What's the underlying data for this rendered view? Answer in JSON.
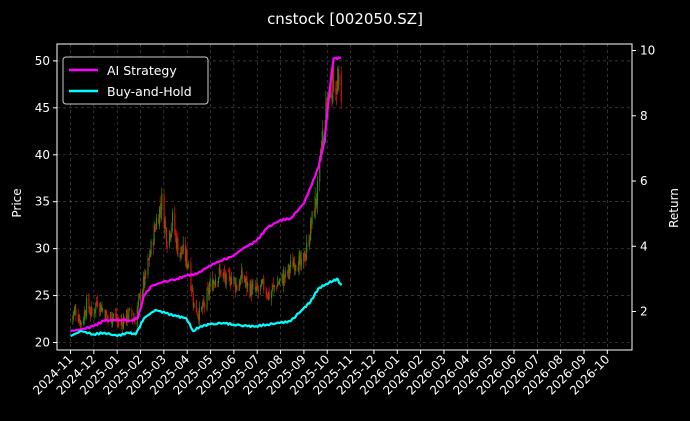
{
  "chart_data": {
    "type": "line",
    "title": "cnstock [002050.SZ]",
    "xlabel": "",
    "ylabel": "Price",
    "ylabel_right": "Return",
    "ylim": [
      19.2,
      51.8
    ],
    "ylim_right": [
      0.82,
      10.2
    ],
    "y_ticks": [
      20,
      25,
      30,
      35,
      40,
      45,
      50
    ],
    "y_ticks_right": [
      2,
      4,
      6,
      8
    ],
    "y_tick_labels_right": [
      "2",
      "4",
      "6",
      "8",
      "10"
    ],
    "y_ticks_right_all": [
      2,
      4,
      6,
      8,
      10
    ],
    "x_tick_labels": [
      "2024-11",
      "2024-12",
      "2025-01",
      "2025-02",
      "2025-03",
      "2025-04",
      "2025-05",
      "2025-06",
      "2025-07",
      "2025-08",
      "2025-09",
      "2025-10",
      "2025-11",
      "2025-12",
      "2026-01",
      "2026-02",
      "2026-03",
      "2026-04",
      "2026-05",
      "2026-06",
      "2026-07",
      "2026-08",
      "2026-09",
      "2026-10"
    ],
    "grid": true,
    "legend_position": "top-left",
    "candles": {
      "up_color": "#2e8b00",
      "down_color": "#e0140e",
      "price_path": [
        [
          "2024-11-01",
          22.5
        ],
        [
          "2024-11-08",
          23.5
        ],
        [
          "2024-11-15",
          22.0
        ],
        [
          "2024-11-22",
          24.0
        ],
        [
          "2024-11-29",
          23.0
        ],
        [
          "2024-12-06",
          24.5
        ],
        [
          "2024-12-13",
          23.5
        ],
        [
          "2024-12-20",
          22.5
        ],
        [
          "2024-12-27",
          23.0
        ],
        [
          "2025-01-03",
          22.0
        ],
        [
          "2025-01-10",
          22.5
        ],
        [
          "2025-01-17",
          23.0
        ],
        [
          "2025-01-24",
          22.5
        ],
        [
          "2025-01-31",
          25.0
        ],
        [
          "2025-02-07",
          27.0
        ],
        [
          "2025-02-14",
          30.0
        ],
        [
          "2025-02-21",
          33.0
        ],
        [
          "2025-02-28",
          35.0
        ],
        [
          "2025-03-07",
          31.0
        ],
        [
          "2025-03-14",
          33.0
        ],
        [
          "2025-03-21",
          30.0
        ],
        [
          "2025-03-28",
          29.5
        ],
        [
          "2025-04-04",
          28.5
        ],
        [
          "2025-04-11",
          24.0
        ],
        [
          "2025-04-18",
          23.0
        ],
        [
          "2025-04-25",
          24.0
        ],
        [
          "2025-05-02",
          26.0
        ],
        [
          "2025-05-09",
          27.0
        ],
        [
          "2025-05-16",
          27.5
        ],
        [
          "2025-05-23",
          26.5
        ],
        [
          "2025-05-30",
          27.0
        ],
        [
          "2025-06-06",
          26.0
        ],
        [
          "2025-06-13",
          27.0
        ],
        [
          "2025-06-20",
          26.0
        ],
        [
          "2025-06-27",
          25.5
        ],
        [
          "2025-07-04",
          25.5
        ],
        [
          "2025-07-11",
          26.0
        ],
        [
          "2025-07-18",
          25.0
        ],
        [
          "2025-07-25",
          26.0
        ],
        [
          "2025-08-01",
          26.5
        ],
        [
          "2025-08-08",
          27.0
        ],
        [
          "2025-08-15",
          28.0
        ],
        [
          "2025-08-22",
          29.0
        ],
        [
          "2025-08-29",
          28.0
        ],
        [
          "2025-09-05",
          30.0
        ],
        [
          "2025-09-12",
          33.0
        ],
        [
          "2025-09-19",
          36.0
        ],
        [
          "2025-09-26",
          42.0
        ],
        [
          "2025-10-03",
          46.0
        ],
        [
          "2025-10-10",
          48.0
        ],
        [
          "2025-10-17",
          47.0
        ],
        [
          "2025-10-20",
          45.0
        ]
      ]
    },
    "series": [
      {
        "name": "AI Strategy",
        "color": "#ff00ff",
        "axis": "right",
        "points": [
          [
            "2024-11-01",
            1.4
          ],
          [
            "2024-11-15",
            1.45
          ],
          [
            "2024-12-01",
            1.55
          ],
          [
            "2024-12-15",
            1.72
          ],
          [
            "2025-01-01",
            1.75
          ],
          [
            "2025-01-20",
            1.72
          ],
          [
            "2025-01-28",
            1.8
          ],
          [
            "2025-02-05",
            2.5
          ],
          [
            "2025-02-15",
            2.78
          ],
          [
            "2025-03-01",
            2.9
          ],
          [
            "2025-03-20",
            3.0
          ],
          [
            "2025-04-01",
            3.1
          ],
          [
            "2025-04-15",
            3.15
          ],
          [
            "2025-05-01",
            3.4
          ],
          [
            "2025-05-15",
            3.55
          ],
          [
            "2025-06-01",
            3.7
          ],
          [
            "2025-06-15",
            3.95
          ],
          [
            "2025-07-01",
            4.15
          ],
          [
            "2025-07-15",
            4.55
          ],
          [
            "2025-08-01",
            4.8
          ],
          [
            "2025-08-15",
            4.85
          ],
          [
            "2025-09-01",
            5.3
          ],
          [
            "2025-09-10",
            5.8
          ],
          [
            "2025-09-20",
            6.4
          ],
          [
            "2025-09-28",
            7.2
          ],
          [
            "2025-10-05",
            8.8
          ],
          [
            "2025-10-10",
            9.75
          ],
          [
            "2025-10-20",
            9.78
          ]
        ]
      },
      {
        "name": "Buy-and-Hold",
        "color": "#00ffff",
        "axis": "right",
        "points": [
          [
            "2024-11-01",
            1.25
          ],
          [
            "2024-11-15",
            1.4
          ],
          [
            "2024-12-01",
            1.3
          ],
          [
            "2024-12-15",
            1.35
          ],
          [
            "2025-01-01",
            1.25
          ],
          [
            "2025-01-15",
            1.35
          ],
          [
            "2025-01-25",
            1.3
          ],
          [
            "2025-02-05",
            1.8
          ],
          [
            "2025-02-20",
            2.05
          ],
          [
            "2025-03-05",
            1.95
          ],
          [
            "2025-03-20",
            1.85
          ],
          [
            "2025-04-01",
            1.8
          ],
          [
            "2025-04-10",
            1.4
          ],
          [
            "2025-04-20",
            1.55
          ],
          [
            "2025-05-01",
            1.6
          ],
          [
            "2025-05-20",
            1.65
          ],
          [
            "2025-06-01",
            1.6
          ],
          [
            "2025-06-20",
            1.55
          ],
          [
            "2025-07-01",
            1.55
          ],
          [
            "2025-07-15",
            1.6
          ],
          [
            "2025-08-01",
            1.65
          ],
          [
            "2025-08-15",
            1.7
          ],
          [
            "2025-09-01",
            2.1
          ],
          [
            "2025-09-10",
            2.3
          ],
          [
            "2025-09-20",
            2.7
          ],
          [
            "2025-10-01",
            2.85
          ],
          [
            "2025-10-10",
            2.95
          ],
          [
            "2025-10-15",
            3.0
          ],
          [
            "2025-10-20",
            2.8
          ]
        ]
      }
    ]
  }
}
